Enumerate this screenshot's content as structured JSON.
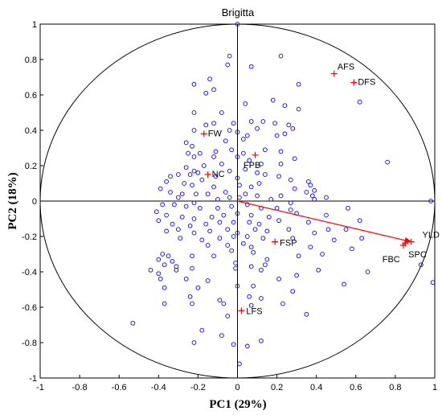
{
  "chart_data": {
    "type": "scatter",
    "title": "Brigitta",
    "xlabel": "PC1 (29%)",
    "ylabel": "PC2 (18%)",
    "xlim": [
      -1,
      1
    ],
    "ylim": [
      -1,
      1
    ],
    "x_ticks": [
      "-1",
      "-0.8",
      "-0.6",
      "-0.4",
      "-0.2",
      "0",
      "0.2",
      "0.4",
      "0.6",
      "0.8",
      "1"
    ],
    "y_ticks": [
      "-1",
      "-0.8",
      "-0.6",
      "-0.4",
      "-0.2",
      "0",
      "0.2",
      "0.4",
      "0.6",
      "0.8",
      "1"
    ],
    "grid": false,
    "colors": {
      "scores": "#0000ff",
      "loadings": "#ff0000",
      "axes": "#000000"
    },
    "variables": [
      {
        "label": "AFS",
        "x": 0.49,
        "y": 0.72
      },
      {
        "label": "DFS",
        "x": 0.59,
        "y": 0.67
      },
      {
        "label": "FW",
        "x": -0.17,
        "y": 0.38
      },
      {
        "label": "FPB",
        "x": 0.09,
        "y": 0.26
      },
      {
        "label": "NC",
        "x": -0.15,
        "y": 0.15
      },
      {
        "label": "FSP",
        "x": 0.19,
        "y": -0.23
      },
      {
        "label": "LFS",
        "x": 0.02,
        "y": -0.62
      },
      {
        "label": "YLD",
        "x": 0.88,
        "y": -0.23
      },
      {
        "label": "SPC",
        "x": 0.85,
        "y": -0.24
      },
      {
        "label": "FBC",
        "x": 0.84,
        "y": -0.25
      }
    ],
    "arrow": {
      "from": [
        0,
        0
      ],
      "to": [
        0.88,
        -0.23
      ]
    },
    "scores": [
      [
        0.0,
        1.0
      ],
      [
        -0.04,
        0.82
      ],
      [
        0.22,
        0.82
      ],
      [
        0.07,
        0.76
      ],
      [
        -0.05,
        0.77
      ],
      [
        -0.22,
        0.66
      ],
      [
        -0.14,
        0.69
      ],
      [
        -0.12,
        0.63
      ],
      [
        -0.16,
        0.61
      ],
      [
        0.31,
        0.66
      ],
      [
        0.62,
        0.56
      ],
      [
        0.04,
        0.55
      ],
      [
        0.18,
        0.57
      ],
      [
        0.24,
        0.54
      ],
      [
        -0.08,
        0.5
      ],
      [
        -0.22,
        0.5
      ],
      [
        0.31,
        0.52
      ],
      [
        0.07,
        0.45
      ],
      [
        0.13,
        0.45
      ],
      [
        0.19,
        0.44
      ],
      [
        -0.02,
        0.44
      ],
      [
        0.26,
        0.43
      ],
      [
        -0.12,
        0.44
      ],
      [
        -0.16,
        0.43
      ],
      [
        0.1,
        0.41
      ],
      [
        -0.22,
        0.4
      ],
      [
        -0.04,
        0.4
      ],
      [
        0.0,
        0.39
      ],
      [
        0.2,
        0.37
      ],
      [
        0.24,
        0.38
      ],
      [
        0.28,
        0.41
      ],
      [
        0.05,
        0.37
      ],
      [
        -0.26,
        0.33
      ],
      [
        -0.23,
        0.31
      ],
      [
        -0.06,
        0.34
      ],
      [
        0.03,
        0.35
      ],
      [
        -0.25,
        0.27
      ],
      [
        -0.19,
        0.27
      ],
      [
        -0.11,
        0.28
      ],
      [
        0.14,
        0.29
      ],
      [
        0.22,
        0.28
      ],
      [
        -0.03,
        0.29
      ],
      [
        0.03,
        0.27
      ],
      [
        -0.22,
        0.25
      ],
      [
        -0.12,
        0.25
      ],
      [
        0.0,
        0.25
      ],
      [
        0.06,
        0.23
      ],
      [
        0.12,
        0.21
      ],
      [
        0.22,
        0.21
      ],
      [
        0.29,
        0.24
      ],
      [
        0.76,
        0.22
      ],
      [
        -0.26,
        0.19
      ],
      [
        -0.17,
        0.2
      ],
      [
        -0.08,
        0.21
      ],
      [
        -0.22,
        0.17
      ],
      [
        -0.2,
        0.16
      ],
      [
        -0.04,
        0.17
      ],
      [
        0.04,
        0.18
      ],
      [
        0.1,
        0.16
      ],
      [
        0.14,
        0.15
      ],
      [
        -0.3,
        0.15
      ],
      [
        -0.24,
        0.15
      ],
      [
        -0.11,
        0.14
      ],
      [
        0.0,
        0.13
      ],
      [
        0.21,
        0.14
      ],
      [
        0.27,
        0.12
      ],
      [
        0.36,
        0.11
      ],
      [
        -0.36,
        0.11
      ],
      [
        -0.34,
        0.14
      ],
      [
        -0.18,
        0.12
      ],
      [
        -0.27,
        0.1
      ],
      [
        -0.23,
        0.09
      ],
      [
        -0.12,
        0.08
      ],
      [
        0.01,
        0.09
      ],
      [
        0.07,
        0.08
      ],
      [
        0.11,
        0.1
      ],
      [
        0.29,
        0.07
      ],
      [
        0.37,
        0.09
      ],
      [
        0.39,
        0.06
      ],
      [
        -0.39,
        0.07
      ],
      [
        -0.34,
        0.05
      ],
      [
        -0.28,
        0.04
      ],
      [
        -0.21,
        0.04
      ],
      [
        -0.15,
        0.04
      ],
      [
        -0.06,
        0.05
      ],
      [
        0.04,
        0.04
      ],
      [
        0.1,
        0.03
      ],
      [
        0.22,
        0.03
      ],
      [
        0.35,
        0.05
      ],
      [
        0.45,
        0.02
      ],
      [
        0.38,
        0.03
      ],
      [
        -0.3,
        0.02
      ],
      [
        -0.22,
        -0.01
      ],
      [
        -0.1,
        0.01
      ],
      [
        -0.04,
        0.02
      ],
      [
        0.01,
        0.02
      ],
      [
        0.17,
        0.01
      ],
      [
        0.27,
        -0.01
      ],
      [
        0.39,
        0.01
      ],
      [
        0.98,
        0.0
      ],
      [
        -0.38,
        -0.02
      ],
      [
        -0.32,
        -0.02
      ],
      [
        -0.26,
        -0.03
      ],
      [
        -0.19,
        -0.04
      ],
      [
        -0.1,
        -0.04
      ],
      [
        -0.03,
        -0.03
      ],
      [
        0.05,
        -0.02
      ],
      [
        0.12,
        -0.04
      ],
      [
        0.2,
        -0.04
      ],
      [
        0.27,
        -0.05
      ],
      [
        -0.41,
        -0.06
      ],
      [
        -0.36,
        -0.08
      ],
      [
        -0.28,
        -0.09
      ],
      [
        -0.22,
        -0.1
      ],
      [
        -0.13,
        -0.09
      ],
      [
        -0.07,
        -0.08
      ],
      [
        0.0,
        -0.07
      ],
      [
        0.07,
        -0.08
      ],
      [
        0.16,
        -0.09
      ],
      [
        0.3,
        -0.07
      ],
      [
        0.45,
        -0.08
      ],
      [
        0.56,
        -0.04
      ],
      [
        -0.4,
        -0.11
      ],
      [
        -0.33,
        -0.13
      ],
      [
        -0.24,
        -0.14
      ],
      [
        -0.16,
        -0.13
      ],
      [
        -0.09,
        -0.12
      ],
      [
        -0.02,
        -0.12
      ],
      [
        0.06,
        -0.12
      ],
      [
        0.11,
        -0.13
      ],
      [
        0.21,
        -0.11
      ],
      [
        0.36,
        -0.12
      ],
      [
        0.46,
        -0.16
      ],
      [
        0.62,
        -0.11
      ],
      [
        -0.36,
        -0.17
      ],
      [
        -0.3,
        -0.16
      ],
      [
        -0.22,
        -0.18
      ],
      [
        -0.14,
        -0.17
      ],
      [
        -0.05,
        -0.16
      ],
      [
        0.0,
        -0.18
      ],
      [
        0.09,
        -0.16
      ],
      [
        0.15,
        -0.17
      ],
      [
        0.26,
        -0.16
      ],
      [
        0.39,
        -0.18
      ],
      [
        0.55,
        -0.16
      ],
      [
        -0.29,
        -0.21
      ],
      [
        -0.18,
        -0.22
      ],
      [
        -0.09,
        -0.21
      ],
      [
        -0.02,
        -0.2
      ],
      [
        0.05,
        -0.2
      ],
      [
        0.13,
        -0.21
      ],
      [
        0.28,
        -0.21
      ],
      [
        0.49,
        -0.22
      ],
      [
        0.63,
        -0.21
      ],
      [
        -0.15,
        -0.25
      ],
      [
        -0.05,
        -0.25
      ],
      [
        0.03,
        -0.24
      ],
      [
        0.07,
        -0.26
      ],
      [
        0.37,
        -0.26
      ],
      [
        0.58,
        -0.27
      ],
      [
        -0.23,
        -0.31
      ],
      [
        -0.12,
        -0.31
      ],
      [
        -0.03,
        -0.28
      ],
      [
        0.08,
        -0.29
      ],
      [
        0.31,
        -0.31
      ],
      [
        0.43,
        -0.3
      ],
      [
        -0.38,
        -0.3
      ],
      [
        -0.35,
        -0.31
      ],
      [
        -0.4,
        -0.33
      ],
      [
        -0.33,
        -0.34
      ],
      [
        -0.37,
        -0.36
      ],
      [
        -0.31,
        -0.37
      ],
      [
        -0.01,
        -0.35
      ],
      [
        0.15,
        -0.33
      ],
      [
        0.07,
        -0.37
      ],
      [
        0.14,
        -0.36
      ],
      [
        0.93,
        -0.36
      ],
      [
        -0.44,
        -0.39
      ],
      [
        -0.4,
        -0.41
      ],
      [
        -0.31,
        -0.39
      ],
      [
        -0.23,
        -0.38
      ],
      [
        -0.01,
        -0.38
      ],
      [
        0.12,
        -0.39
      ],
      [
        0.41,
        -0.39
      ],
      [
        0.66,
        -0.4
      ],
      [
        -0.39,
        -0.44
      ],
      [
        -0.26,
        -0.44
      ],
      [
        -0.15,
        -0.45
      ],
      [
        0.21,
        -0.44
      ],
      [
        0.3,
        -0.42
      ],
      [
        0.54,
        -0.47
      ],
      [
        0.99,
        -0.46
      ],
      [
        -0.37,
        -0.49
      ],
      [
        -0.2,
        -0.49
      ],
      [
        0.0,
        -0.48
      ],
      [
        0.08,
        -0.48
      ],
      [
        0.28,
        -0.51
      ],
      [
        -0.24,
        -0.54
      ],
      [
        -0.09,
        -0.56
      ],
      [
        0.06,
        -0.54
      ],
      [
        0.12,
        -0.55
      ],
      [
        -0.37,
        -0.58
      ],
      [
        -0.23,
        -0.58
      ],
      [
        -0.07,
        -0.58
      ],
      [
        0.07,
        -0.59
      ],
      [
        0.23,
        -0.58
      ],
      [
        -0.05,
        -0.65
      ],
      [
        0.35,
        -0.64
      ],
      [
        -0.53,
        -0.69
      ],
      [
        -0.18,
        -0.73
      ],
      [
        -0.08,
        -0.76
      ],
      [
        -0.02,
        -0.81
      ],
      [
        -0.22,
        -0.8
      ],
      [
        0.05,
        -0.82
      ],
      [
        0.12,
        -0.79
      ],
      [
        0.01,
        -0.92
      ]
    ]
  }
}
